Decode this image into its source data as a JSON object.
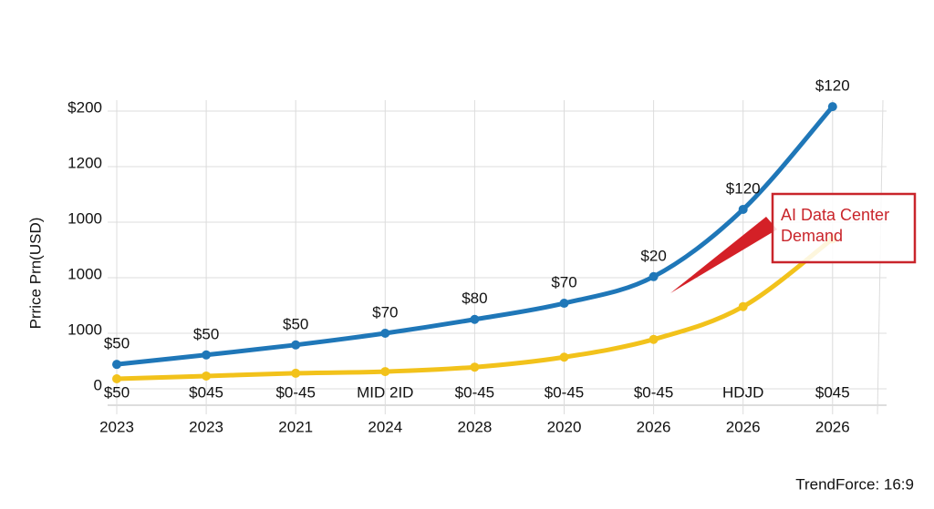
{
  "chart_data": {
    "type": "line",
    "y_label": "Prrice Prn(USD)",
    "categories": [
      "2023",
      "2023",
      "2021",
      "2024",
      "2028",
      "2020",
      "2026",
      "2026",
      "2026"
    ],
    "series": [
      {
        "color": "#1f77b8",
        "values": [
          44,
          61,
          79,
          100,
          125,
          154,
          202,
          323,
          508
        ],
        "annotations": [
          "$50",
          "$50",
          "$50",
          "$70",
          "$80",
          "$70",
          "$20",
          "$120",
          "$120"
        ]
      },
      {
        "color": "#f2c21b",
        "values": [
          18,
          23,
          28,
          31,
          39,
          57,
          89,
          148,
          270
        ],
        "annotations": [
          "$50",
          "$045",
          "$0-45",
          "MID 2ID",
          "$0-45",
          "$0-45",
          "$0-45",
          "HDJD",
          "$045"
        ]
      }
    ],
    "ylim": [
      0,
      520
    ],
    "yticks": [
      0,
      {
        "value": 100,
        "label": "1000"
      },
      {
        "value": 200,
        "label": "1000"
      },
      {
        "value": 300,
        "label": "1000"
      },
      {
        "value": 400,
        "label": "1200"
      },
      {
        "value": 500,
        "label": "$200"
      }
    ],
    "grid": true,
    "callout": [
      "AI Data Center",
      "Demand"
    ],
    "source": "TrendForce: 16:9"
  }
}
